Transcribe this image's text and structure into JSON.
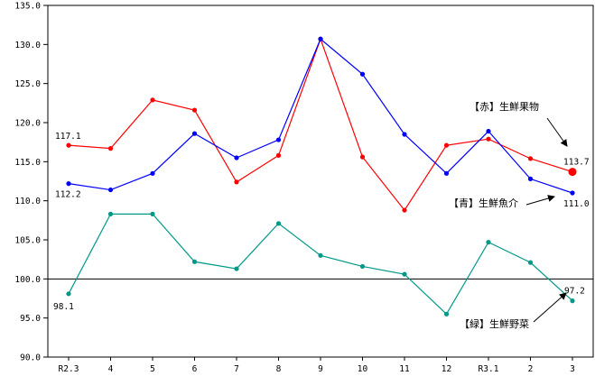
{
  "chart_data": {
    "type": "line",
    "categories": [
      "R2.3",
      "4",
      "5",
      "6",
      "7",
      "8",
      "9",
      "10",
      "11",
      "12",
      "R3.1",
      "2",
      "3"
    ],
    "ylim": [
      90.0,
      135.0
    ],
    "ytick_step": 5,
    "ytick_labels": [
      "90.0",
      "95.0",
      "100.0",
      "105.0",
      "110.0",
      "115.0",
      "120.0",
      "125.0",
      "130.0",
      "135.0"
    ],
    "reference_line": 100.0,
    "grid": false,
    "series": [
      {
        "key": "fruit",
        "name": "【赤】生鮮果物",
        "color": "#ff0000",
        "values": [
          117.1,
          116.7,
          122.9,
          121.6,
          112.4,
          115.8,
          130.7,
          115.6,
          108.8,
          117.1,
          117.9,
          115.4,
          113.7
        ],
        "first_label": "117.1",
        "last_label": "113.7"
      },
      {
        "key": "fish",
        "name": "【青】生鮮魚介",
        "color": "#0000ff",
        "values": [
          112.2,
          111.4,
          113.5,
          118.6,
          115.5,
          117.8,
          130.7,
          126.2,
          118.5,
          113.5,
          118.9,
          112.8,
          111.0
        ],
        "first_label": "112.2",
        "last_label": "111.0"
      },
      {
        "key": "veg",
        "name": "【緑】生鮮野菜",
        "color": "#009988",
        "values": [
          98.1,
          108.3,
          108.3,
          102.2,
          101.3,
          107.1,
          103.0,
          101.6,
          100.6,
          95.5,
          104.7,
          102.1,
          97.2
        ],
        "first_label": "98.1",
        "last_label": "97.2"
      }
    ]
  }
}
